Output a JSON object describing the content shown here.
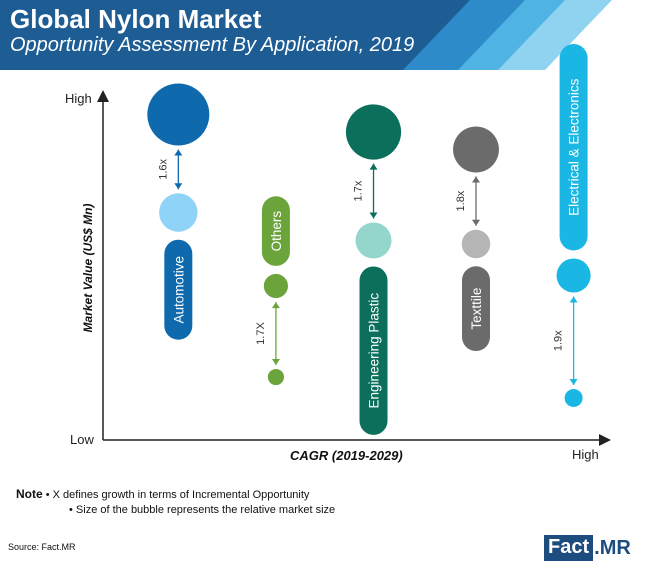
{
  "header": {
    "title": "Global Nylon Market",
    "subtitle": "Opportunity Assessment By Application, 2019"
  },
  "colors": {
    "header_dark": "#1d5d94",
    "stripe_1": "#2d8bc9",
    "stripe_2": "#4fb3e3",
    "stripe_3": "#8fd3f0"
  },
  "axes": {
    "y_label": "Market Value (US$ Mn)",
    "x_label": "CAGR (2019-2029)",
    "y_high": "High",
    "y_low": "Low",
    "x_high": "High"
  },
  "chart_data": {
    "type": "scatter",
    "title": "Global Nylon Market",
    "subtitle": "Opportunity Assessment By Application, 2019",
    "xlabel": "CAGR (2019-2029)",
    "ylabel": "Market Value (US$ Mn)",
    "grid": false,
    "series": [
      {
        "name": "Automotive",
        "color": "#0e6aad",
        "light_color": "#8fd3f8",
        "growth_label": "1.6x",
        "x": 0.14,
        "y_current": 0.93,
        "y_previous": 0.65,
        "size_current": 1.0,
        "size_previous": 0.62
      },
      {
        "name": "Others",
        "color": "#6aa43a",
        "light_color": "#6aa43a",
        "growth_label": "1.7X",
        "x": 0.34,
        "y_current": 0.44,
        "y_previous": 0.18,
        "size_current": 0.39,
        "size_previous": 0.26
      },
      {
        "name": "Engineering Plastic",
        "color": "#0b6f5c",
        "light_color": "#94d6cc",
        "growth_label": "1.7x",
        "x": 0.54,
        "y_current": 0.88,
        "y_previous": 0.57,
        "size_current": 0.89,
        "size_previous": 0.58
      },
      {
        "name": "Texttile",
        "color": "#6b6b6b",
        "light_color": "#b5b5b5",
        "growth_label": "1.8x",
        "x": 0.75,
        "y_current": 0.83,
        "y_previous": 0.56,
        "size_current": 0.74,
        "size_previous": 0.46
      },
      {
        "name": "Electrical & Electronics",
        "color": "#1ab7e4",
        "light_color": "#1ab7e4",
        "growth_label": "1.9x",
        "x": 0.95,
        "y_current": 0.47,
        "y_previous": 0.12,
        "size_current": 0.55,
        "size_previous": 0.29
      }
    ]
  },
  "notes": {
    "label": "Note",
    "line1": "• X defines growth in terms of Incremental Opportunity",
    "line2": "• Size of the bubble represents the relative market size"
  },
  "source": "Source: Fact.MR",
  "logo": {
    "box": "Fact",
    "dot": ".",
    "suffix": "MR"
  }
}
